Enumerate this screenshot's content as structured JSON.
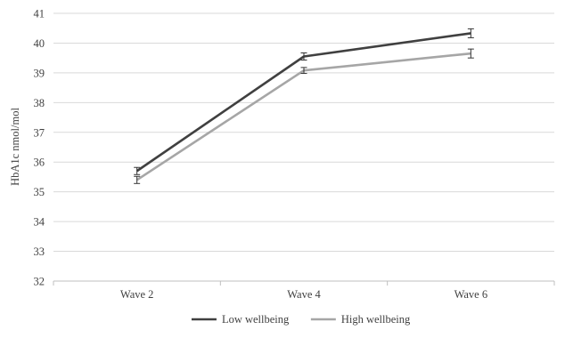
{
  "chart_data": {
    "type": "line",
    "title": "",
    "xlabel": "",
    "ylabel": "HbA1c nmol/mol",
    "categories": [
      "Wave 2",
      "Wave 4",
      "Wave 6"
    ],
    "ylim": [
      32,
      41
    ],
    "yticks": [
      32,
      33,
      34,
      35,
      36,
      37,
      38,
      39,
      40,
      41
    ],
    "grid": true,
    "legend_position": "bottom",
    "series": [
      {
        "name": "Low wellbeing",
        "color": "#404040",
        "values": [
          35.7,
          39.55,
          40.33
        ],
        "error": [
          0.12,
          0.12,
          0.15
        ]
      },
      {
        "name": "High wellbeing",
        "color": "#a6a6a6",
        "values": [
          35.4,
          39.08,
          39.65
        ],
        "error": [
          0.12,
          0.1,
          0.15
        ]
      }
    ]
  }
}
